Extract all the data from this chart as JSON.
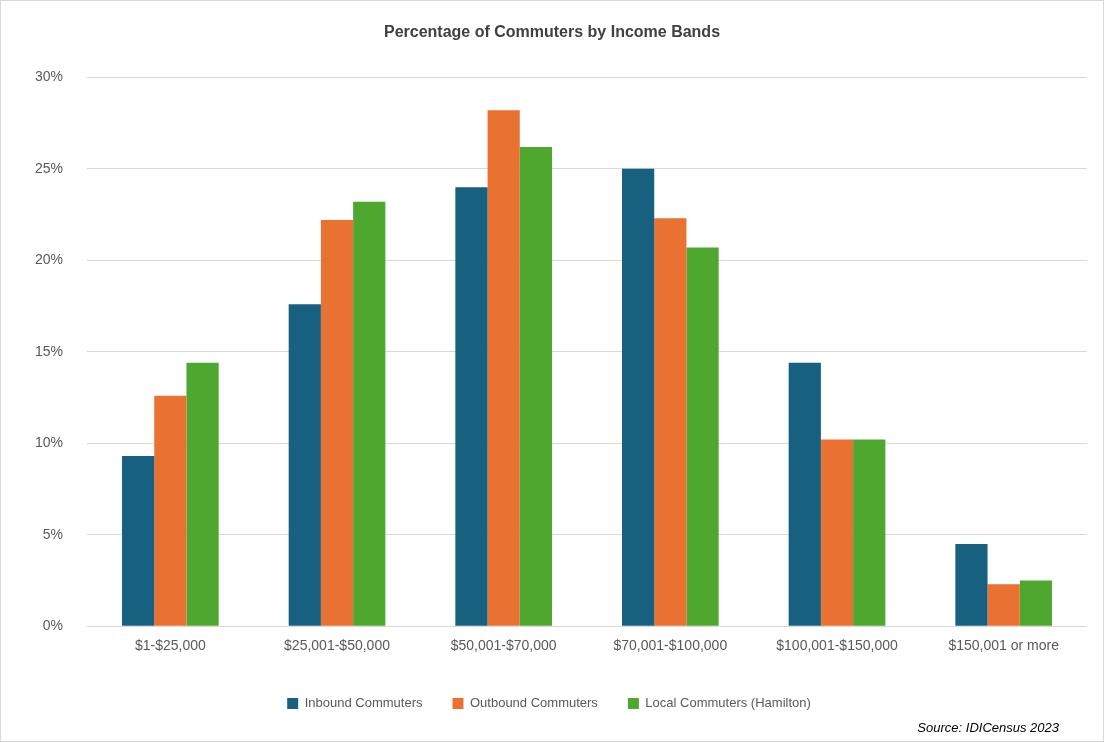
{
  "chart_data": {
    "type": "bar",
    "title": "Percentage of Commuters by Income Bands",
    "categories": [
      "$1-$25,000",
      "$25,001-$50,000",
      "$50,001-$70,000",
      "$70,001-$100,000",
      "$100,001-$150,000",
      "$150,001 or more"
    ],
    "series": [
      {
        "name": "Inbound Commuters",
        "color": "#17607f",
        "values": [
          9.3,
          17.6,
          24.0,
          25.0,
          14.4,
          4.5
        ]
      },
      {
        "name": "Outbound Commuters",
        "color": "#e97132",
        "values": [
          12.6,
          22.2,
          28.2,
          22.3,
          10.2,
          2.3
        ]
      },
      {
        "name": "Local Commuters (Hamilton)",
        "color": "#4ea72e",
        "values": [
          14.4,
          23.2,
          26.2,
          20.7,
          10.2,
          2.5
        ]
      }
    ],
    "ylim": [
      0,
      30
    ],
    "yticks": [
      {
        "value": 0,
        "label": "0%"
      },
      {
        "value": 5,
        "label": "5%"
      },
      {
        "value": 10,
        "label": "10%"
      },
      {
        "value": 15,
        "label": "15%"
      },
      {
        "value": 20,
        "label": "20%"
      },
      {
        "value": 25,
        "label": "25%"
      },
      {
        "value": 30,
        "label": "30%"
      }
    ],
    "grid": "y",
    "legend": "bottom",
    "annotations": [
      "Source: IDICensus 2023"
    ]
  }
}
